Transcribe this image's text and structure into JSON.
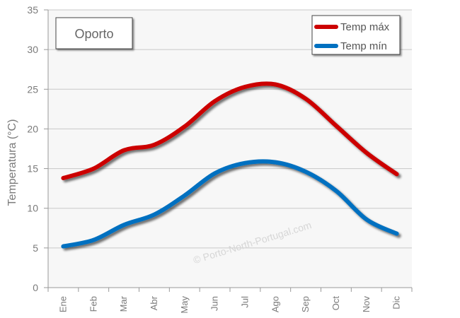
{
  "chart_data": {
    "type": "line",
    "title": "Oporto",
    "ylabel": "Temperatura (°C)",
    "xlabel": "",
    "categories": [
      "Ene",
      "Feb",
      "Mar",
      "Abr",
      "May",
      "Jun",
      "Jul",
      "Ago",
      "Sep",
      "Oct",
      "Nov",
      "Dic"
    ],
    "ylim": [
      0,
      35
    ],
    "yticks": [
      0,
      5,
      10,
      15,
      20,
      25,
      30,
      35
    ],
    "grid": true,
    "legend_position": "top-right",
    "series": [
      {
        "name": "Temp máx",
        "color": "#cc0000",
        "values": [
          13.8,
          15.0,
          17.3,
          18.0,
          20.3,
          23.5,
          25.3,
          25.6,
          23.8,
          20.4,
          17.0,
          14.3
        ]
      },
      {
        "name": "Temp mín",
        "color": "#0070c0",
        "values": [
          5.2,
          6.0,
          7.9,
          9.2,
          11.6,
          14.4,
          15.7,
          15.8,
          14.6,
          12.2,
          8.6,
          6.8
        ]
      }
    ],
    "watermark": "© Porto-North-Portugal.com"
  }
}
